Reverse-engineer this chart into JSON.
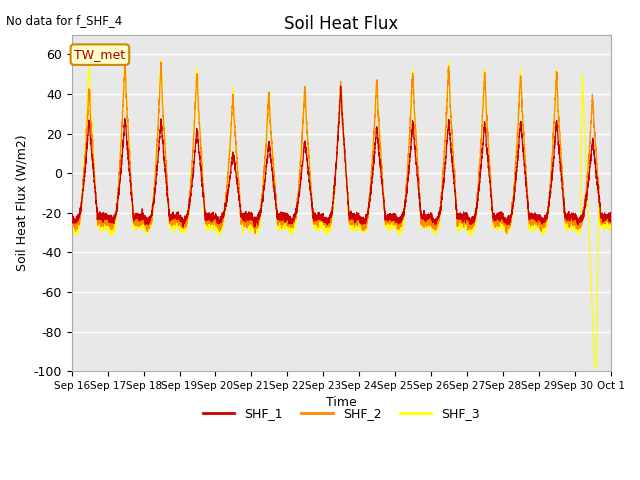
{
  "title": "Soil Heat Flux",
  "subtitle": "No data for f_SHF_4",
  "ylabel": "Soil Heat Flux (W/m2)",
  "xlabel": "Time",
  "annotation": "TW_met",
  "ylim": [
    -100,
    70
  ],
  "yticks": [
    -100,
    -80,
    -60,
    -40,
    -20,
    0,
    20,
    40,
    60
  ],
  "xtick_labels": [
    "Sep 16",
    "Sep 17",
    "Sep 18",
    "Sep 19",
    "Sep 20",
    "Sep 21",
    "Sep 22",
    "Sep 23",
    "Sep 24",
    "Sep 25",
    "Sep 26",
    "Sep 27",
    "Sep 28",
    "Sep 29",
    "Sep 30",
    "Oct 1"
  ],
  "colors": {
    "SHF_1": "#cc0000",
    "SHF_2": "#ff8800",
    "SHF_3": "#ffff00",
    "plot_bg": "#e8e8e8"
  },
  "legend_entries": [
    "SHF_1",
    "SHF_2",
    "SHF_3"
  ],
  "total_days": 15
}
